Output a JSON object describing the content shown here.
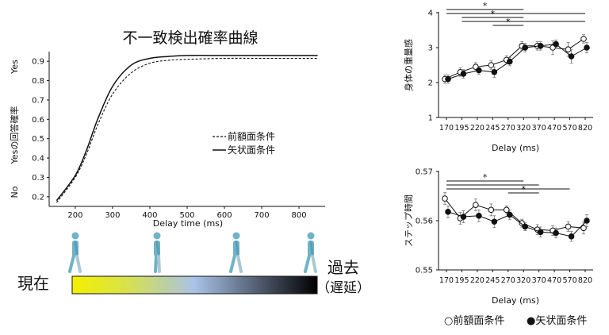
{
  "colors": {
    "ink": "#111111",
    "figure": "#6fb3c7",
    "grad_start": "#f5f000",
    "grad_mid": "#a9c2e8",
    "grad_end": "#000000"
  },
  "timeline": {
    "now_label": "現在",
    "past_label": "過去",
    "delay_label": "（遅延）"
  },
  "legend_bottom": {
    "open_label": "○前額面条件",
    "filled_label": "●矢状面条件"
  },
  "chart_data": [
    {
      "type": "line",
      "title": "不一致検出確率曲線",
      "xlabel": "Delay time (ms)",
      "ylabel": "Yesの回答確率",
      "ylabel_top": "Yes",
      "ylabel_bottom": "No",
      "xlim": [
        130,
        870
      ],
      "ylim": [
        0.15,
        0.95
      ],
      "xticks": [
        200,
        300,
        400,
        500,
        600,
        700,
        800
      ],
      "yticks": [
        0.2,
        0.3,
        0.4,
        0.5,
        0.6,
        0.7,
        0.8,
        0.9
      ],
      "series": [
        {
          "name": "前額面条件",
          "style": "dashed",
          "x": [
            150,
            200,
            230,
            260,
            300,
            350,
            400,
            450,
            500,
            600,
            700,
            850
          ],
          "y": [
            0.17,
            0.3,
            0.42,
            0.57,
            0.73,
            0.84,
            0.89,
            0.905,
            0.91,
            0.915,
            0.915,
            0.915
          ]
        },
        {
          "name": "矢状面条件",
          "style": "solid",
          "x": [
            150,
            200,
            230,
            260,
            300,
            350,
            400,
            450,
            500,
            600,
            700,
            850
          ],
          "y": [
            0.18,
            0.31,
            0.44,
            0.6,
            0.77,
            0.88,
            0.915,
            0.925,
            0.93,
            0.93,
            0.93,
            0.93
          ]
        }
      ]
    },
    {
      "type": "line",
      "xlabel": "Delay (ms)",
      "ylabel": "身体の重量感",
      "categories": [
        "170",
        "195",
        "220",
        "245",
        "270",
        "320",
        "370",
        "470",
        "570",
        "820"
      ],
      "ylim": [
        1,
        4
      ],
      "yticks": [
        1,
        2,
        3,
        4
      ],
      "series": [
        {
          "name": "前額面条件",
          "marker": "open",
          "values": [
            2.1,
            2.3,
            2.45,
            2.5,
            2.65,
            3.05,
            3.05,
            3.0,
            2.95,
            3.25
          ],
          "err": [
            0.12,
            0.12,
            0.12,
            0.12,
            0.12,
            0.12,
            0.12,
            0.2,
            0.2,
            0.12
          ]
        },
        {
          "name": "矢状面条件",
          "marker": "filled",
          "values": [
            2.1,
            2.25,
            2.35,
            2.3,
            2.6,
            3.0,
            3.05,
            3.1,
            2.75,
            3.0
          ],
          "err": [
            0.12,
            0.12,
            0.12,
            0.15,
            0.12,
            0.12,
            0.12,
            0.12,
            0.2,
            0.15
          ]
        }
      ],
      "significance": [
        {
          "from": "170",
          "to": "320",
          "label": "*"
        },
        {
          "from": "170",
          "to": "820",
          "label": ""
        },
        {
          "from": "195",
          "to": "320",
          "label": "*"
        },
        {
          "from": "195",
          "to": "820",
          "label": ""
        },
        {
          "from": "245",
          "to": "320",
          "label": "*"
        }
      ]
    },
    {
      "type": "line",
      "xlabel": "Delay (ms)",
      "ylabel": "ステップ時間",
      "categories": [
        "170",
        "195",
        "220",
        "245",
        "270",
        "320",
        "370",
        "470",
        "570",
        "820"
      ],
      "ylim": [
        0.55,
        0.57
      ],
      "yticks": [
        0.55,
        0.56,
        0.57
      ],
      "series": [
        {
          "name": "前額面条件",
          "marker": "open",
          "values": [
            0.5645,
            0.5605,
            0.5632,
            0.5622,
            0.5622,
            0.5595,
            0.5582,
            0.558,
            0.5588,
            0.5585
          ],
          "err": [
            0.0012,
            0.0012,
            0.0012,
            0.0012,
            0.0008,
            0.0008,
            0.001,
            0.001,
            0.001,
            0.0012
          ]
        },
        {
          "name": "矢状面条件",
          "marker": "filled",
          "values": [
            0.5618,
            0.5608,
            0.561,
            0.5598,
            0.5612,
            0.5588,
            0.5577,
            0.5575,
            0.5568,
            0.56
          ],
          "err": [
            0.0012,
            0.0012,
            0.0012,
            0.0012,
            0.001,
            0.0008,
            0.001,
            0.001,
            0.001,
            0.0012
          ]
        }
      ],
      "significance": [
        {
          "from": "170",
          "to": "320",
          "label": "*"
        },
        {
          "from": "170",
          "to": "370",
          "label": ""
        },
        {
          "from": "170",
          "to": "570",
          "label": ""
        },
        {
          "from": "270",
          "to": "370",
          "label": "*"
        }
      ]
    }
  ]
}
